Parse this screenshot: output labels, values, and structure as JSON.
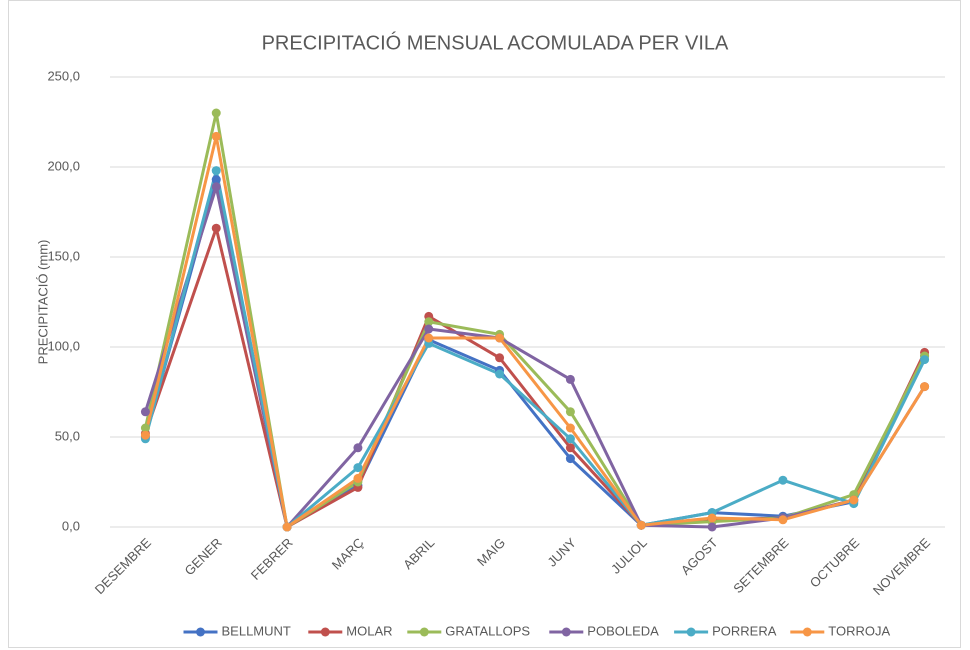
{
  "chart_data": {
    "type": "line",
    "title": "PRECIPITACIÓ MENSUAL ACOMULADA PER VILA",
    "y_label": "PRECIPITACIÓ (mm)",
    "categories": [
      "DESEMBRE",
      "GENER",
      "FEBRER",
      "MARÇ",
      "ABRIL",
      "MAIG",
      "JUNY",
      "JULIOL",
      "AGOST",
      "SETEMBRE",
      "OCTUBRE",
      "NOVEMBRE"
    ],
    "series": [
      {
        "name": "BELLMUNT",
        "color": "#4472c4",
        "values": [
          50,
          193,
          0,
          23,
          104,
          87,
          38,
          1,
          8,
          6,
          14,
          95
        ]
      },
      {
        "name": "MOLAR",
        "color": "#c0504d",
        "values": [
          52,
          166,
          0,
          22,
          117,
          94,
          44,
          1,
          4,
          5,
          15,
          97
        ]
      },
      {
        "name": "GRATALLOPS",
        "color": "#9bbb59",
        "values": [
          55,
          230,
          0,
          25,
          114,
          107,
          64,
          1,
          3,
          5,
          18,
          95
        ]
      },
      {
        "name": "POBOLEDA",
        "color": "#8064a2",
        "values": [
          64,
          189,
          0,
          44,
          110,
          105,
          82,
          1,
          0,
          5,
          15,
          78
        ]
      },
      {
        "name": "PORRERA",
        "color": "#4bacc6",
        "values": [
          49,
          198,
          0,
          33,
          102,
          85,
          49,
          1,
          8,
          26,
          13,
          93
        ]
      },
      {
        "name": "TORROJA",
        "color": "#f79646",
        "values": [
          51,
          217,
          0,
          27,
          105,
          105,
          55,
          1,
          5,
          4,
          15,
          78
        ]
      }
    ],
    "ylim": [
      0,
      250
    ],
    "yticks": [
      {
        "value": 0,
        "label": "0,0"
      },
      {
        "value": 50,
        "label": "50,0"
      },
      {
        "value": 100,
        "label": "100,0"
      },
      {
        "value": 150,
        "label": "150,0"
      },
      {
        "value": 200,
        "label": "200,0"
      },
      {
        "value": 250,
        "label": "250,0"
      }
    ],
    "grid": true,
    "legend": "bottom"
  }
}
